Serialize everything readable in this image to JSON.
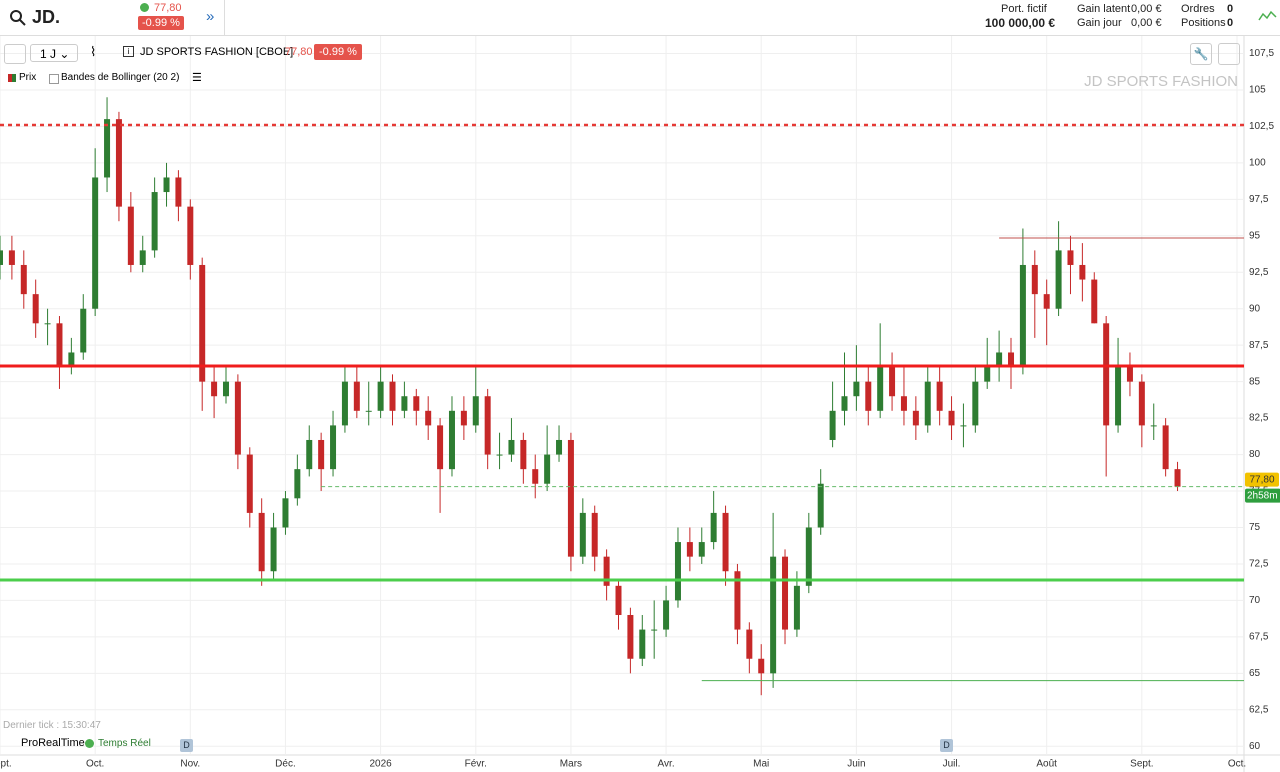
{
  "header": {
    "symbol": "JD.",
    "price": "77,80",
    "change": "-0.99 %",
    "portfolio_label": "Port. fictif",
    "portfolio_value": "100 000,00 €",
    "gain_latent_label": "Gain latent",
    "gain_latent_value": "0,00 €",
    "gain_jour_label": "Gain jour",
    "gain_jour_value": "0,00 €",
    "orders_label": "Ordres",
    "orders_value": "0",
    "positions_label": "Positions",
    "positions_value": "0"
  },
  "toolbar": {
    "period": "1 J",
    "instrument": "JD SPORTS FASHION [CBOE]",
    "price": "77,80",
    "change": "-0.99 %"
  },
  "legend": {
    "price": "Prix",
    "indicator": "Bandes de Bollinger (20 2)"
  },
  "footer": {
    "last_tick": "Dernier tick : 15:30:47",
    "provider": "ProRealTime",
    "feed": "Temps Réel",
    "marker_1": "D",
    "marker_2": "D"
  },
  "chart_data": {
    "type": "candlestick",
    "watermark": "JD SPORTS FASHION",
    "categories": [
      "Sept.",
      null,
      null,
      null,
      null,
      null,
      null,
      null,
      "Oct.",
      null,
      null,
      null,
      null,
      null,
      null,
      null,
      "Nov.",
      null,
      null,
      null,
      null,
      null,
      null,
      null,
      "Déc.",
      null,
      null,
      null,
      null,
      null,
      null,
      null,
      "2026",
      null,
      null,
      null,
      null,
      null,
      null,
      null,
      "Févr.",
      null,
      null,
      null,
      null,
      null,
      null,
      null,
      "Mars",
      null,
      null,
      null,
      null,
      null,
      null,
      null,
      "Avr.",
      null,
      null,
      null,
      null,
      null,
      null,
      null,
      "Mai",
      null,
      null,
      null,
      null,
      null,
      null,
      null,
      "Juin",
      null,
      null,
      null,
      null,
      null,
      null,
      null,
      "Juil.",
      null,
      null,
      null,
      null,
      null,
      null,
      null,
      "Août",
      null,
      null,
      null,
      null,
      null,
      null,
      null,
      "Sept.",
      null,
      null,
      null,
      null,
      null,
      null,
      null,
      "Oct."
    ],
    "open": [
      93,
      94,
      93,
      91,
      89,
      89,
      86,
      87,
      90,
      99,
      103,
      97,
      93,
      94,
      98,
      99,
      97,
      93,
      85,
      84,
      85,
      80,
      76,
      72,
      75,
      77,
      79,
      81,
      79,
      82,
      85,
      83,
      83,
      85,
      83,
      84,
      83,
      82,
      79,
      83,
      82,
      84,
      80,
      80,
      81,
      79,
      78,
      80,
      81,
      73,
      76,
      73,
      71,
      69,
      66,
      68,
      68,
      70,
      74,
      73,
      74,
      76,
      72,
      68,
      66,
      65,
      73,
      68,
      71,
      75,
      81,
      83,
      84,
      85,
      83,
      86,
      84,
      83,
      82,
      85,
      83,
      82,
      82,
      85,
      86,
      87,
      86,
      93,
      91,
      90,
      94,
      93,
      92,
      89,
      82,
      86,
      85,
      82,
      82,
      79,
      null,
      null,
      null,
      null,
      null
    ],
    "high": [
      95,
      95,
      94,
      92,
      90,
      89.5,
      88,
      91,
      101,
      104.5,
      103.5,
      98,
      95,
      99,
      100,
      99.5,
      97.5,
      93.5,
      86,
      86,
      85.5,
      80.5,
      77,
      76,
      77.5,
      80,
      82,
      81.5,
      83,
      86,
      86,
      85,
      86,
      85.5,
      85,
      84.5,
      84,
      82.5,
      84,
      84,
      86,
      84.5,
      81.5,
      82.5,
      81.5,
      80,
      82,
      82,
      81.5,
      77,
      76.5,
      73.5,
      71.5,
      69.5,
      69,
      70,
      71,
      75,
      75,
      75,
      77.5,
      76.5,
      72.5,
      68.5,
      67,
      76,
      73.5,
      72,
      76,
      79,
      85,
      87,
      87.5,
      86,
      89,
      87,
      86,
      84,
      86,
      86,
      84,
      83.5,
      86,
      88,
      88.5,
      88,
      95.5,
      94,
      92,
      96,
      95,
      94.5,
      92.5,
      89.5,
      88,
      87,
      85.5,
      83.5,
      82.5,
      79.5,
      null,
      null,
      null,
      null,
      null
    ],
    "low": [
      92,
      92,
      90,
      88,
      87.5,
      84.5,
      85.5,
      86.5,
      89.5,
      98,
      96,
      92.5,
      92.5,
      93.5,
      97,
      96,
      92,
      83,
      82.5,
      83.5,
      79,
      75,
      71,
      71.5,
      74.5,
      76.5,
      78.5,
      77.5,
      78.5,
      81.5,
      82.5,
      82,
      82.5,
      82,
      82.5,
      82,
      81,
      76,
      78.5,
      81,
      81.5,
      79,
      79,
      79.5,
      78,
      77,
      77.5,
      79.5,
      72,
      72.5,
      72,
      70,
      68,
      65,
      65.5,
      66,
      67.5,
      69.5,
      72,
      72.5,
      73.5,
      71,
      67,
      65,
      63.5,
      64,
      67,
      67.5,
      70.5,
      74.5,
      80.5,
      82,
      83,
      82,
      82.5,
      83,
      82,
      81,
      81.5,
      82,
      81,
      80.5,
      81.5,
      84.5,
      85,
      84.5,
      85.5,
      88,
      87.5,
      89.5,
      91,
      90.5,
      89,
      78.5,
      81.5,
      84,
      80.5,
      81,
      78.5,
      77.5,
      null,
      null,
      null,
      null,
      null
    ],
    "close": [
      94,
      93,
      91,
      89,
      89,
      86,
      87,
      90,
      99,
      103,
      97,
      93,
      94,
      98,
      99,
      97,
      93,
      85,
      84,
      85,
      80,
      76,
      72,
      75,
      77,
      79,
      81,
      79,
      82,
      85,
      83,
      83,
      85,
      83,
      84,
      83,
      82,
      79,
      83,
      82,
      84,
      80,
      80,
      81,
      79,
      78,
      80,
      81,
      73,
      76,
      73,
      71,
      69,
      66,
      68,
      68,
      70,
      74,
      73,
      74,
      76,
      72,
      68,
      66,
      65,
      73,
      68,
      71,
      75,
      78,
      83,
      84,
      85,
      83,
      86,
      84,
      83,
      82,
      85,
      83,
      82,
      82,
      85,
      86,
      87,
      86,
      93,
      91,
      90,
      94,
      93,
      92,
      89,
      82,
      86,
      85,
      82,
      82,
      79,
      77.8,
      null,
      null,
      null,
      null,
      null
    ],
    "up_color": "#2e7d32",
    "down_color": "#c62828",
    "hlines": [
      {
        "value": 102.6,
        "color": "#e53935",
        "style": "dotted",
        "from": 0
      },
      {
        "value": 86.07,
        "color": "#f01c1c",
        "style": "thick",
        "from": 0
      },
      {
        "value": 71.4,
        "color": "#4cce4c",
        "style": "thick",
        "from": 0
      },
      {
        "value": 94.85,
        "color": "#c0504d",
        "style": "thin",
        "from": 84
      },
      {
        "value": 64.5,
        "color": "#4caf50",
        "style": "thin",
        "from": 59
      },
      {
        "value": 77.8,
        "color": "#66bb6a",
        "style": "dashed",
        "from": 27
      }
    ],
    "last_price": {
      "value": 77.8,
      "label": "77,80"
    },
    "countdown": "2h58m",
    "ylim": [
      59.4,
      108.7
    ],
    "yticks": [
      60,
      {
        "value": 62.5,
        "label": "62,5"
      },
      65,
      {
        "value": 67.5,
        "label": "67,5"
      },
      70,
      {
        "value": 72.5,
        "label": "72,5"
      },
      75,
      {
        "value": 77.5,
        "label": "77,5"
      },
      80,
      {
        "value": 82.5,
        "label": "82,5"
      },
      85,
      {
        "value": 87.5,
        "label": "87,5"
      },
      90,
      {
        "value": 92.5,
        "label": "92,5"
      },
      95,
      {
        "value": 97.5,
        "label": "97,5"
      },
      100,
      {
        "value": 102.5,
        "label": "102,5"
      },
      105,
      {
        "value": 107.5,
        "label": "107,5"
      }
    ],
    "grid": true
  }
}
